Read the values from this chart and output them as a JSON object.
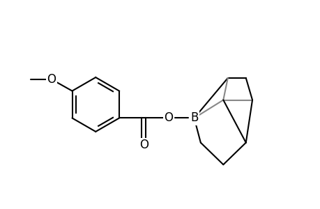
{
  "background": "#ffffff",
  "line_color": "#000000",
  "gray_line_color": "#888888",
  "bond_width": 1.5,
  "font_size": 12,
  "figsize": [
    4.6,
    3.0
  ],
  "dpi": 100,
  "xlim": [
    -0.3,
    4.6
  ],
  "ylim": [
    -1.1,
    1.4
  ]
}
